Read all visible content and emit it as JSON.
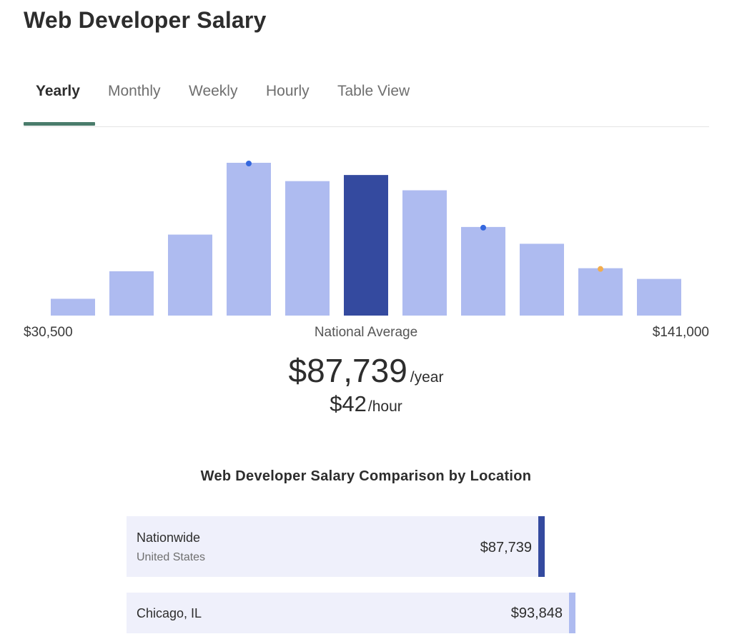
{
  "page_title": "Web Developer Salary",
  "tabs": [
    {
      "label": "Yearly",
      "active": true
    },
    {
      "label": "Monthly",
      "active": false
    },
    {
      "label": "Weekly",
      "active": false
    },
    {
      "label": "Hourly",
      "active": false
    },
    {
      "label": "Table View",
      "active": false
    }
  ],
  "colors": {
    "bar": "#aebbf0",
    "bar_highlight": "#344a9f",
    "dot_blue": "#3568de",
    "dot_orange": "#f2ad4e",
    "tab_underline": "#4a7c6b",
    "location_bg": "#eff0fb",
    "nationwide_marker": "#344a9f",
    "chicago_marker": "#aebbf0"
  },
  "chart_data": {
    "type": "bar",
    "title": "",
    "xlabel": "",
    "ylabel": "",
    "x_range_labels": {
      "min": "$30,500",
      "max": "$141,000"
    },
    "bins": 11,
    "values": [
      11,
      29,
      53,
      100,
      88,
      92,
      82,
      58,
      47,
      31,
      24
    ],
    "ylim": [
      0,
      100
    ],
    "highlight_index": 5,
    "markers": [
      {
        "bin": 3,
        "color": "blue"
      },
      {
        "bin": 7,
        "color": "blue"
      },
      {
        "bin": 9,
        "color": "orange"
      }
    ],
    "center_label": "National Average"
  },
  "salary": {
    "yearly_amount": "$87,739",
    "yearly_unit": "/year",
    "hourly_amount": "$42",
    "hourly_unit": "/hour"
  },
  "comparison": {
    "title": "Web Developer Salary Comparison by Location",
    "scale_max": 95000,
    "locations": [
      {
        "name": "Nationwide",
        "subtitle": "United States",
        "value": 87739,
        "value_label": "$87,739",
        "marker": "nationwide_marker"
      },
      {
        "name": "Chicago, IL",
        "subtitle": "",
        "value": 93848,
        "value_label": "$93,848",
        "marker": "chicago_marker"
      }
    ]
  }
}
